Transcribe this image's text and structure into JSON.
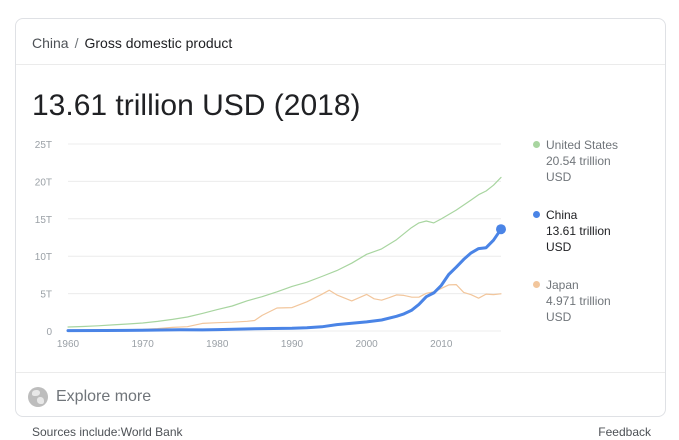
{
  "breadcrumb": {
    "parent": "China",
    "separator": "/",
    "current": "Gross domestic product"
  },
  "headline_value": "13.61 trillion USD (2018)",
  "chart_data": {
    "type": "line",
    "title": "",
    "xlabel": "",
    "ylabel": "",
    "xlim": [
      1960,
      2018
    ],
    "ylim": [
      0,
      25
    ],
    "x_ticks": [
      1960,
      1970,
      1980,
      1990,
      2000,
      2010
    ],
    "y_ticks": [
      0,
      5,
      10,
      15,
      20,
      25
    ],
    "y_tick_labels": [
      "0",
      "5T",
      "10T",
      "15T",
      "20T",
      "25T"
    ],
    "grid": true,
    "legend_position": "right",
    "series": [
      {
        "name": "United States",
        "color": "#a8d5a0",
        "points": [
          [
            1960,
            0.54
          ],
          [
            1962,
            0.6
          ],
          [
            1964,
            0.69
          ],
          [
            1966,
            0.82
          ],
          [
            1968,
            0.94
          ],
          [
            1970,
            1.07
          ],
          [
            1972,
            1.28
          ],
          [
            1974,
            1.55
          ],
          [
            1976,
            1.87
          ],
          [
            1978,
            2.35
          ],
          [
            1980,
            2.86
          ],
          [
            1982,
            3.34
          ],
          [
            1984,
            4.04
          ],
          [
            1986,
            4.58
          ],
          [
            1988,
            5.24
          ],
          [
            1990,
            5.96
          ],
          [
            1992,
            6.52
          ],
          [
            1994,
            7.29
          ],
          [
            1996,
            8.07
          ],
          [
            1998,
            9.06
          ],
          [
            2000,
            10.25
          ],
          [
            2002,
            10.98
          ],
          [
            2004,
            12.21
          ],
          [
            2006,
            13.81
          ],
          [
            2007,
            14.45
          ],
          [
            2008,
            14.71
          ],
          [
            2009,
            14.45
          ],
          [
            2010,
            14.99
          ],
          [
            2012,
            16.16
          ],
          [
            2014,
            17.52
          ],
          [
            2015,
            18.22
          ],
          [
            2016,
            18.71
          ],
          [
            2017,
            19.49
          ],
          [
            2018,
            20.54
          ]
        ]
      },
      {
        "name": "China",
        "color": "#4a84e6",
        "points": [
          [
            1960,
            0.06
          ],
          [
            1965,
            0.07
          ],
          [
            1970,
            0.09
          ],
          [
            1975,
            0.16
          ],
          [
            1978,
            0.15
          ],
          [
            1980,
            0.19
          ],
          [
            1985,
            0.31
          ],
          [
            1990,
            0.36
          ],
          [
            1992,
            0.43
          ],
          [
            1994,
            0.56
          ],
          [
            1996,
            0.86
          ],
          [
            1998,
            1.03
          ],
          [
            2000,
            1.21
          ],
          [
            2002,
            1.47
          ],
          [
            2004,
            1.96
          ],
          [
            2005,
            2.29
          ],
          [
            2006,
            2.75
          ],
          [
            2007,
            3.55
          ],
          [
            2008,
            4.59
          ],
          [
            2009,
            5.1
          ],
          [
            2010,
            6.09
          ],
          [
            2011,
            7.55
          ],
          [
            2012,
            8.53
          ],
          [
            2013,
            9.57
          ],
          [
            2014,
            10.44
          ],
          [
            2015,
            11.02
          ],
          [
            2016,
            11.14
          ],
          [
            2017,
            12.14
          ],
          [
            2018,
            13.61
          ]
        ]
      },
      {
        "name": "Japan",
        "color": "#f2c69c",
        "points": [
          [
            1960,
            0.04
          ],
          [
            1965,
            0.09
          ],
          [
            1970,
            0.21
          ],
          [
            1972,
            0.32
          ],
          [
            1974,
            0.48
          ],
          [
            1976,
            0.58
          ],
          [
            1978,
            1.01
          ],
          [
            1980,
            1.11
          ],
          [
            1982,
            1.18
          ],
          [
            1984,
            1.3
          ],
          [
            1985,
            1.4
          ],
          [
            1986,
            2.08
          ],
          [
            1988,
            3.07
          ],
          [
            1990,
            3.13
          ],
          [
            1992,
            3.91
          ],
          [
            1994,
            4.91
          ],
          [
            1995,
            5.45
          ],
          [
            1996,
            4.83
          ],
          [
            1998,
            4.03
          ],
          [
            2000,
            4.89
          ],
          [
            2001,
            4.3
          ],
          [
            2002,
            4.12
          ],
          [
            2003,
            4.45
          ],
          [
            2004,
            4.82
          ],
          [
            2005,
            4.76
          ],
          [
            2006,
            4.53
          ],
          [
            2007,
            4.52
          ],
          [
            2008,
            5.04
          ],
          [
            2009,
            5.23
          ],
          [
            2010,
            5.7
          ],
          [
            2011,
            6.16
          ],
          [
            2012,
            6.2
          ],
          [
            2013,
            5.16
          ],
          [
            2014,
            4.85
          ],
          [
            2015,
            4.39
          ],
          [
            2016,
            4.93
          ],
          [
            2017,
            4.87
          ],
          [
            2018,
            4.97
          ]
        ]
      }
    ]
  },
  "legend": [
    {
      "name": "United States",
      "value": "20.54 trillion",
      "unit": "USD",
      "color": "#a8d5a0"
    },
    {
      "name": "China",
      "value": "13.61 trillion",
      "unit": "USD",
      "color": "#4a84e6"
    },
    {
      "name": "Japan",
      "value": "4.971 trillion",
      "unit": "USD",
      "color": "#f2c69c"
    }
  ],
  "explore": {
    "label": "Explore more",
    "icon": "globe-icon"
  },
  "footer": {
    "sources": "Sources include:World Bank",
    "feedback": "Feedback"
  }
}
